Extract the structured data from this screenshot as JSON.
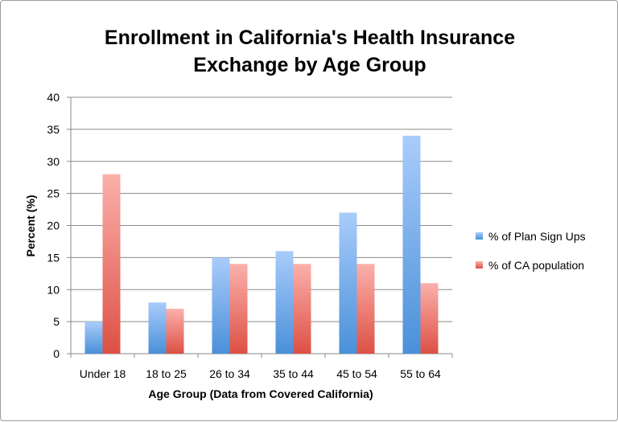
{
  "chart_data": {
    "type": "bar",
    "title_lines": [
      "Enrollment in California's Health Insurance",
      "Exchange by Age Group"
    ],
    "xlabel": "Age Group (Data from Covered California)",
    "ylabel": "Percent (%)",
    "ylim": [
      0,
      40
    ],
    "yticks": [
      0,
      5,
      10,
      15,
      20,
      25,
      30,
      35,
      40
    ],
    "grid": true,
    "legend_placement": "right",
    "categories": [
      "Under 18",
      "18 to 25",
      "26 to 34",
      "35 to 44",
      "45 to 54",
      "55 to 64"
    ],
    "series": [
      {
        "name": "% of Plan Sign Ups",
        "values": [
          5,
          8,
          15,
          16,
          22,
          34
        ],
        "color_top": "#a9ccfb",
        "color_bottom": "#4a90d9"
      },
      {
        "name": "% of CA population",
        "values": [
          28,
          7,
          14,
          14,
          14,
          11
        ],
        "color_top": "#fbb0ac",
        "color_bottom": "#dd5044"
      }
    ]
  }
}
